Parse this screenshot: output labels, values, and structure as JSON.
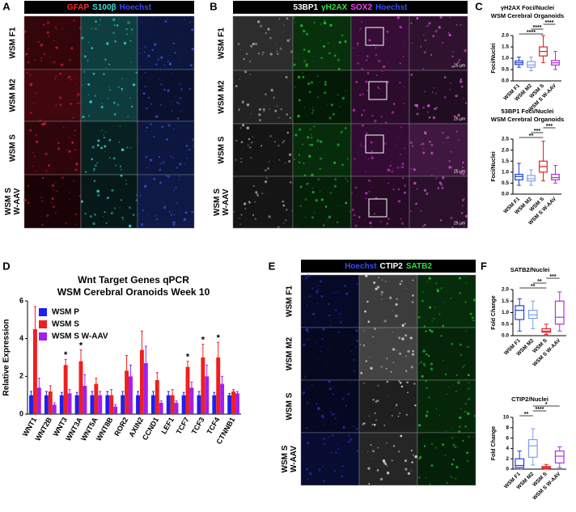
{
  "panel_labels": [
    "A",
    "B",
    "C",
    "D",
    "E",
    "F"
  ],
  "panel_a": {
    "channels": [
      {
        "text": "GFAP",
        "color": "#ff2a2a"
      },
      {
        "text": "S100β",
        "color": "#3fe0e0"
      },
      {
        "text": "Hoechst",
        "color": "#3a4cff"
      }
    ],
    "rows": [
      [
        "WSM F1"
      ],
      [
        "WSM M2"
      ],
      [
        "WSM S"
      ],
      [
        "WSM S",
        "W-AAV"
      ]
    ]
  },
  "panel_b": {
    "channels": [
      {
        "text": "53BP1",
        "color": "#ffffff"
      },
      {
        "text": "γH2AX",
        "color": "#30e040"
      },
      {
        "text": "SOX2",
        "color": "#ff40ff"
      },
      {
        "text": "Hoechst",
        "color": "#3a4cff"
      }
    ],
    "rows": [
      [
        "WSM F1"
      ],
      [
        "WSM M2"
      ],
      [
        "WSM S"
      ],
      [
        "WSM S",
        "W-AAV"
      ]
    ],
    "scale_label": "25 µm"
  },
  "panel_e": {
    "channels": [
      {
        "text": "Hoechst",
        "color": "#3a4cff"
      },
      {
        "text": "CTIP2",
        "color": "#ffffff"
      },
      {
        "text": "SATB2",
        "color": "#30e040"
      }
    ],
    "rows": [
      [
        "WSM F1"
      ],
      [
        "WSM M2"
      ],
      [
        "WSM S"
      ],
      [
        "WSM S",
        "W-AAV"
      ]
    ]
  },
  "chart_data": [
    {
      "type": "box",
      "title": "γH2AX Foci/Nuclei",
      "subtitle": "WSM Cerebral Organoids",
      "ylabel": "Foci/Nuclei",
      "categories": [
        "WSM F1",
        "WSM M2",
        "WSM S",
        "WSM S W-AAV"
      ],
      "colors": [
        "#1f3fe0",
        "#7f9ff0",
        "#e02020",
        "#b030e0"
      ],
      "values": [
        [
          0.6,
          0.72,
          0.8,
          0.88,
          1.05
        ],
        [
          0.45,
          0.6,
          0.7,
          0.85,
          1.05
        ],
        [
          0.8,
          1.1,
          1.3,
          1.5,
          2.0
        ],
        [
          0.5,
          0.7,
          0.8,
          0.9,
          1.3
        ]
      ],
      "significance": [
        "****",
        "****",
        "****"
      ],
      "ylim": [
        0,
        2
      ],
      "yticks": [
        {
          "value": 0,
          "label": "0.0"
        },
        0.5,
        {
          "value": 1,
          "label": "1.0"
        },
        1.5,
        {
          "value": 2,
          "label": "2.0"
        }
      ]
    },
    {
      "type": "box",
      "title": "53BP1 Foci/Nuclei",
      "subtitle": "WSM Cerebral Organoids",
      "ylabel": "Foci/Nuclei",
      "categories": [
        "WSM F1",
        "WSM M2",
        "WSM S",
        "WSM S W-AAV"
      ],
      "colors": [
        "#1f3fe0",
        "#7f9ff0",
        "#e02020",
        "#b030e0"
      ],
      "values": [
        [
          0.4,
          0.65,
          0.8,
          0.9,
          1.4
        ],
        [
          0.4,
          0.6,
          0.7,
          0.85,
          1.1
        ],
        [
          0.6,
          1.0,
          1.25,
          1.5,
          2.4
        ],
        [
          0.5,
          0.65,
          0.75,
          0.9,
          1.3
        ]
      ],
      "significance": [
        "**",
        "***",
        "***"
      ],
      "ylim": [
        0,
        2.5
      ],
      "yticks": [
        {
          "value": 0,
          "label": "0.0"
        },
        0.5,
        {
          "value": 1,
          "label": "1.0"
        },
        1.5,
        {
          "value": 2,
          "label": "2.0"
        },
        2.5
      ]
    },
    {
      "type": "bar",
      "title": "Wnt Target Genes qPCR",
      "subtitle": "WSM Cerebral Oranoids Week 10",
      "ylabel": "Relative Expression",
      "categories": [
        "WNT1",
        "WNT2B",
        "WNT3",
        "WNT3A",
        "WNT5A",
        "WNT8B",
        "ROR2",
        "AXIN2",
        "CCND1",
        "LEF1",
        "TCF7",
        "TCF3",
        "TCF4",
        "CTNNB1"
      ],
      "series": [
        {
          "name": "WSM P",
          "color": "#1f1ff0",
          "values": [
            1,
            1,
            1,
            1,
            1,
            1,
            1,
            1,
            1,
            1,
            1,
            1,
            1,
            1
          ],
          "errors": [
            0.2,
            0.2,
            0.15,
            0.15,
            0.2,
            0.2,
            0.2,
            0.2,
            0.2,
            0.2,
            0.15,
            0.2,
            0.15,
            0.1
          ]
        },
        {
          "name": "WSM S",
          "color": "#f01f1f",
          "values": [
            4.5,
            1.2,
            2.6,
            2.8,
            1.6,
            1.0,
            2.3,
            3.4,
            1.8,
            1.0,
            2.5,
            3.0,
            3.0,
            1.2
          ],
          "errors": [
            1.2,
            0.3,
            0.3,
            0.6,
            0.3,
            0.3,
            0.8,
            1.0,
            0.4,
            0.3,
            0.3,
            0.7,
            0.8,
            0.1
          ]
        },
        {
          "name": "WSM S W-AAV",
          "color": "#a020f0",
          "values": [
            1.4,
            0.5,
            1.1,
            1.5,
            1.0,
            0.4,
            2.0,
            2.7,
            0.6,
            0.6,
            1.4,
            2.0,
            1.6,
            1.1
          ],
          "errors": [
            0.5,
            0.1,
            0.2,
            0.6,
            0.2,
            0.1,
            0.6,
            0.9,
            0.1,
            0.1,
            0.3,
            0.6,
            0.4,
            0.1
          ]
        }
      ],
      "significance": [
        null,
        null,
        "*",
        "*",
        null,
        null,
        null,
        null,
        null,
        null,
        "*",
        "*",
        "*",
        null
      ],
      "legend": "upper left",
      "ylim": [
        0,
        6
      ],
      "yticks": [
        0,
        2,
        4,
        6
      ]
    },
    {
      "type": "box",
      "title": "SATB2/Nuclei",
      "ylabel": "Fold Change",
      "categories": [
        "WSM F1",
        "WSM M2",
        "WSM S",
        "WSM S W-AAV"
      ],
      "colors": [
        "#1f3fe0",
        "#7f9ff0",
        "#e02020",
        "#b030e0"
      ],
      "values": [
        [
          0.2,
          0.7,
          1.1,
          1.3,
          1.6
        ],
        [
          0.3,
          0.75,
          0.9,
          1.1,
          1.5
        ],
        [
          0.05,
          0.15,
          0.2,
          0.3,
          0.5
        ],
        [
          0.2,
          0.5,
          0.8,
          1.5,
          1.9
        ]
      ],
      "significance": [
        "**",
        "**",
        "***"
      ],
      "ylim": [
        0,
        2
      ],
      "yticks": [
        {
          "value": 0,
          "label": "0.0"
        },
        0.5,
        {
          "value": 1,
          "label": "1.0"
        },
        1.5,
        {
          "value": 2,
          "label": "2.0"
        }
      ]
    },
    {
      "type": "box",
      "title": "CTIP2/Nuclei",
      "ylabel": "Fold Change",
      "categories": [
        "WSM F1",
        "WSM M2",
        "WSM S",
        "WSM S W-AAV"
      ],
      "colors": [
        "#1f3fe0",
        "#7f9ff0",
        "#e02020",
        "#b030e0"
      ],
      "values": [
        [
          0,
          0.3,
          0.7,
          2,
          3.5
        ],
        [
          0.8,
          2.3,
          4.5,
          5.7,
          7.8
        ],
        [
          0,
          0.1,
          0.3,
          0.5,
          0.9
        ],
        [
          0.3,
          1.2,
          2.5,
          3.5,
          4.3
        ]
      ],
      "significance": [
        "**",
        "****",
        "*"
      ],
      "ylim": [
        0,
        10
      ],
      "yticks": [
        0,
        2,
        4,
        6,
        8,
        10
      ]
    }
  ]
}
